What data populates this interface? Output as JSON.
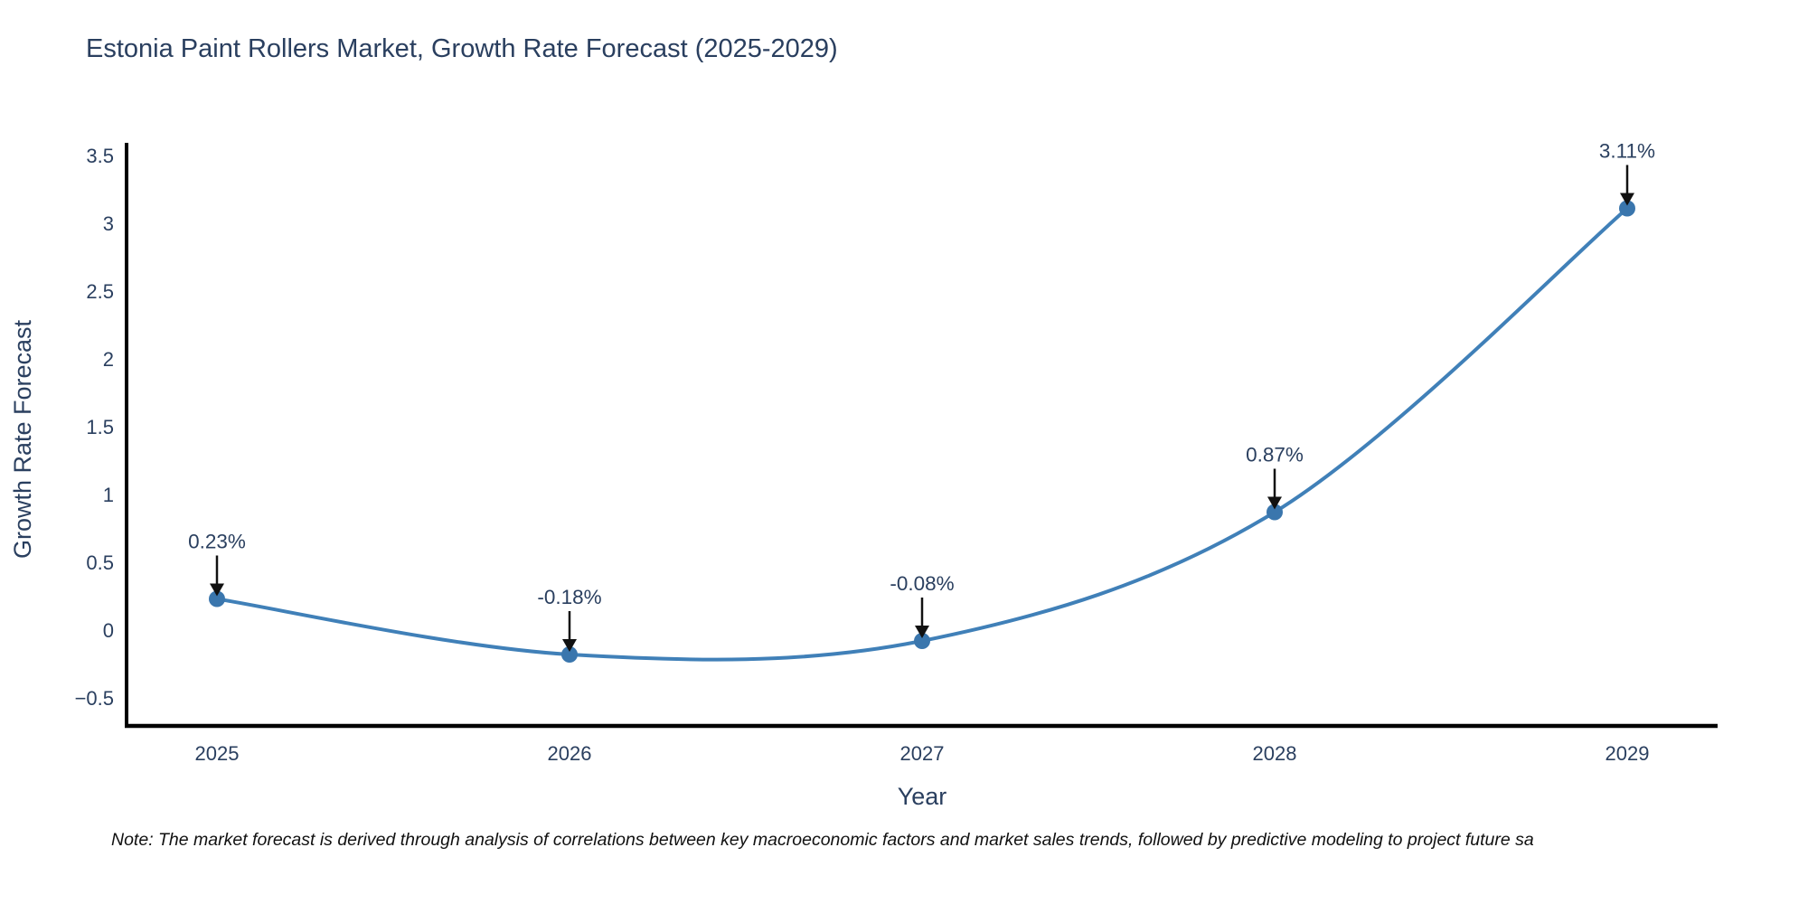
{
  "title": "Estonia Paint Rollers Market, Growth Rate Forecast (2025-2029)",
  "note": "Note: The market forecast is derived through analysis of correlations between key macroeconomic factors and market sales trends, followed by predictive modeling to project future sa",
  "chart_data": {
    "type": "line",
    "title": "Estonia Paint Rollers Market, Growth Rate Forecast (2025-2029)",
    "x": [
      2025,
      2026,
      2027,
      2028,
      2029
    ],
    "values": [
      0.23,
      -0.18,
      -0.08,
      0.87,
      3.11
    ],
    "point_labels": [
      "0.23%",
      "-0.18%",
      "-0.08%",
      "0.87%",
      "3.11%"
    ],
    "xlabel": "Year",
    "ylabel": "Growth Rate Forecast",
    "xticks": [
      "2025",
      "2026",
      "2027",
      "2028",
      "2029"
    ],
    "yticks": [
      {
        "v": 3.5,
        "label": "3.5"
      },
      {
        "v": 3,
        "label": "3"
      },
      {
        "v": 2.5,
        "label": "2.5"
      },
      {
        "v": 2,
        "label": "2"
      },
      {
        "v": 1.5,
        "label": "1.5"
      },
      {
        "v": 1,
        "label": "1"
      },
      {
        "v": 0.5,
        "label": "0.5"
      },
      {
        "v": 0,
        "label": "0"
      },
      {
        "v": -0.5,
        "label": "−0.5"
      }
    ],
    "ylim": [
      -0.5,
      3.5
    ],
    "line_shape": "spline",
    "grid": false,
    "legend": "none",
    "colors": {
      "line": "#4080b8",
      "marker": "#3a76ad",
      "axis": "#000000",
      "text": "#2a3f5f",
      "arrow": "#111111"
    }
  }
}
